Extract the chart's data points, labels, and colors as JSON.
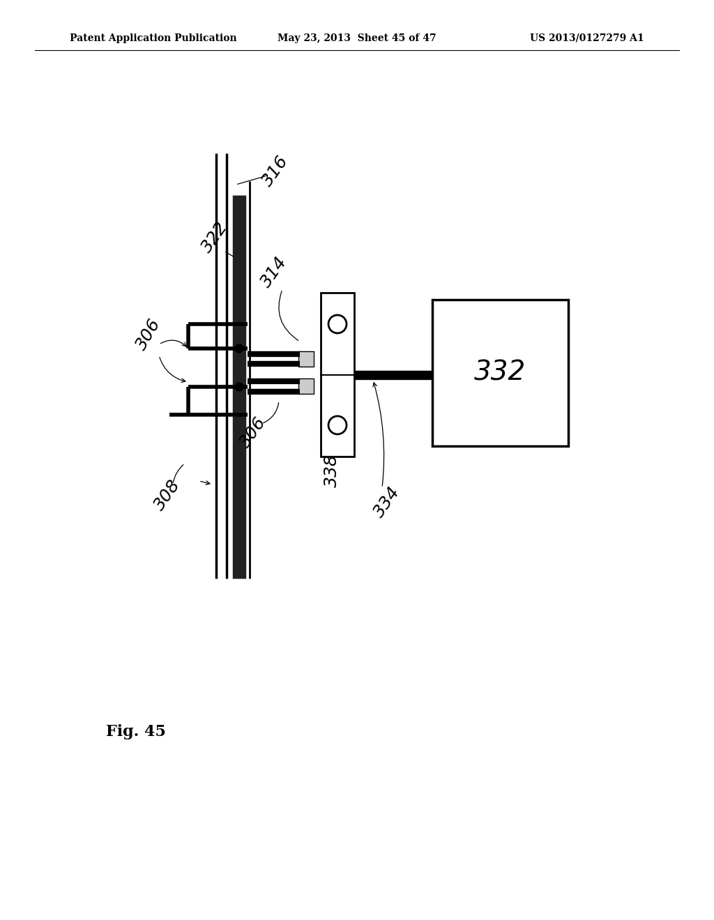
{
  "bg_color": "#ffffff",
  "header_left": "Patent Application Publication",
  "header_mid": "May 23, 2013  Sheet 45 of 47",
  "header_right": "US 2013/0127279 A1",
  "fig_label": "Fig. 45"
}
